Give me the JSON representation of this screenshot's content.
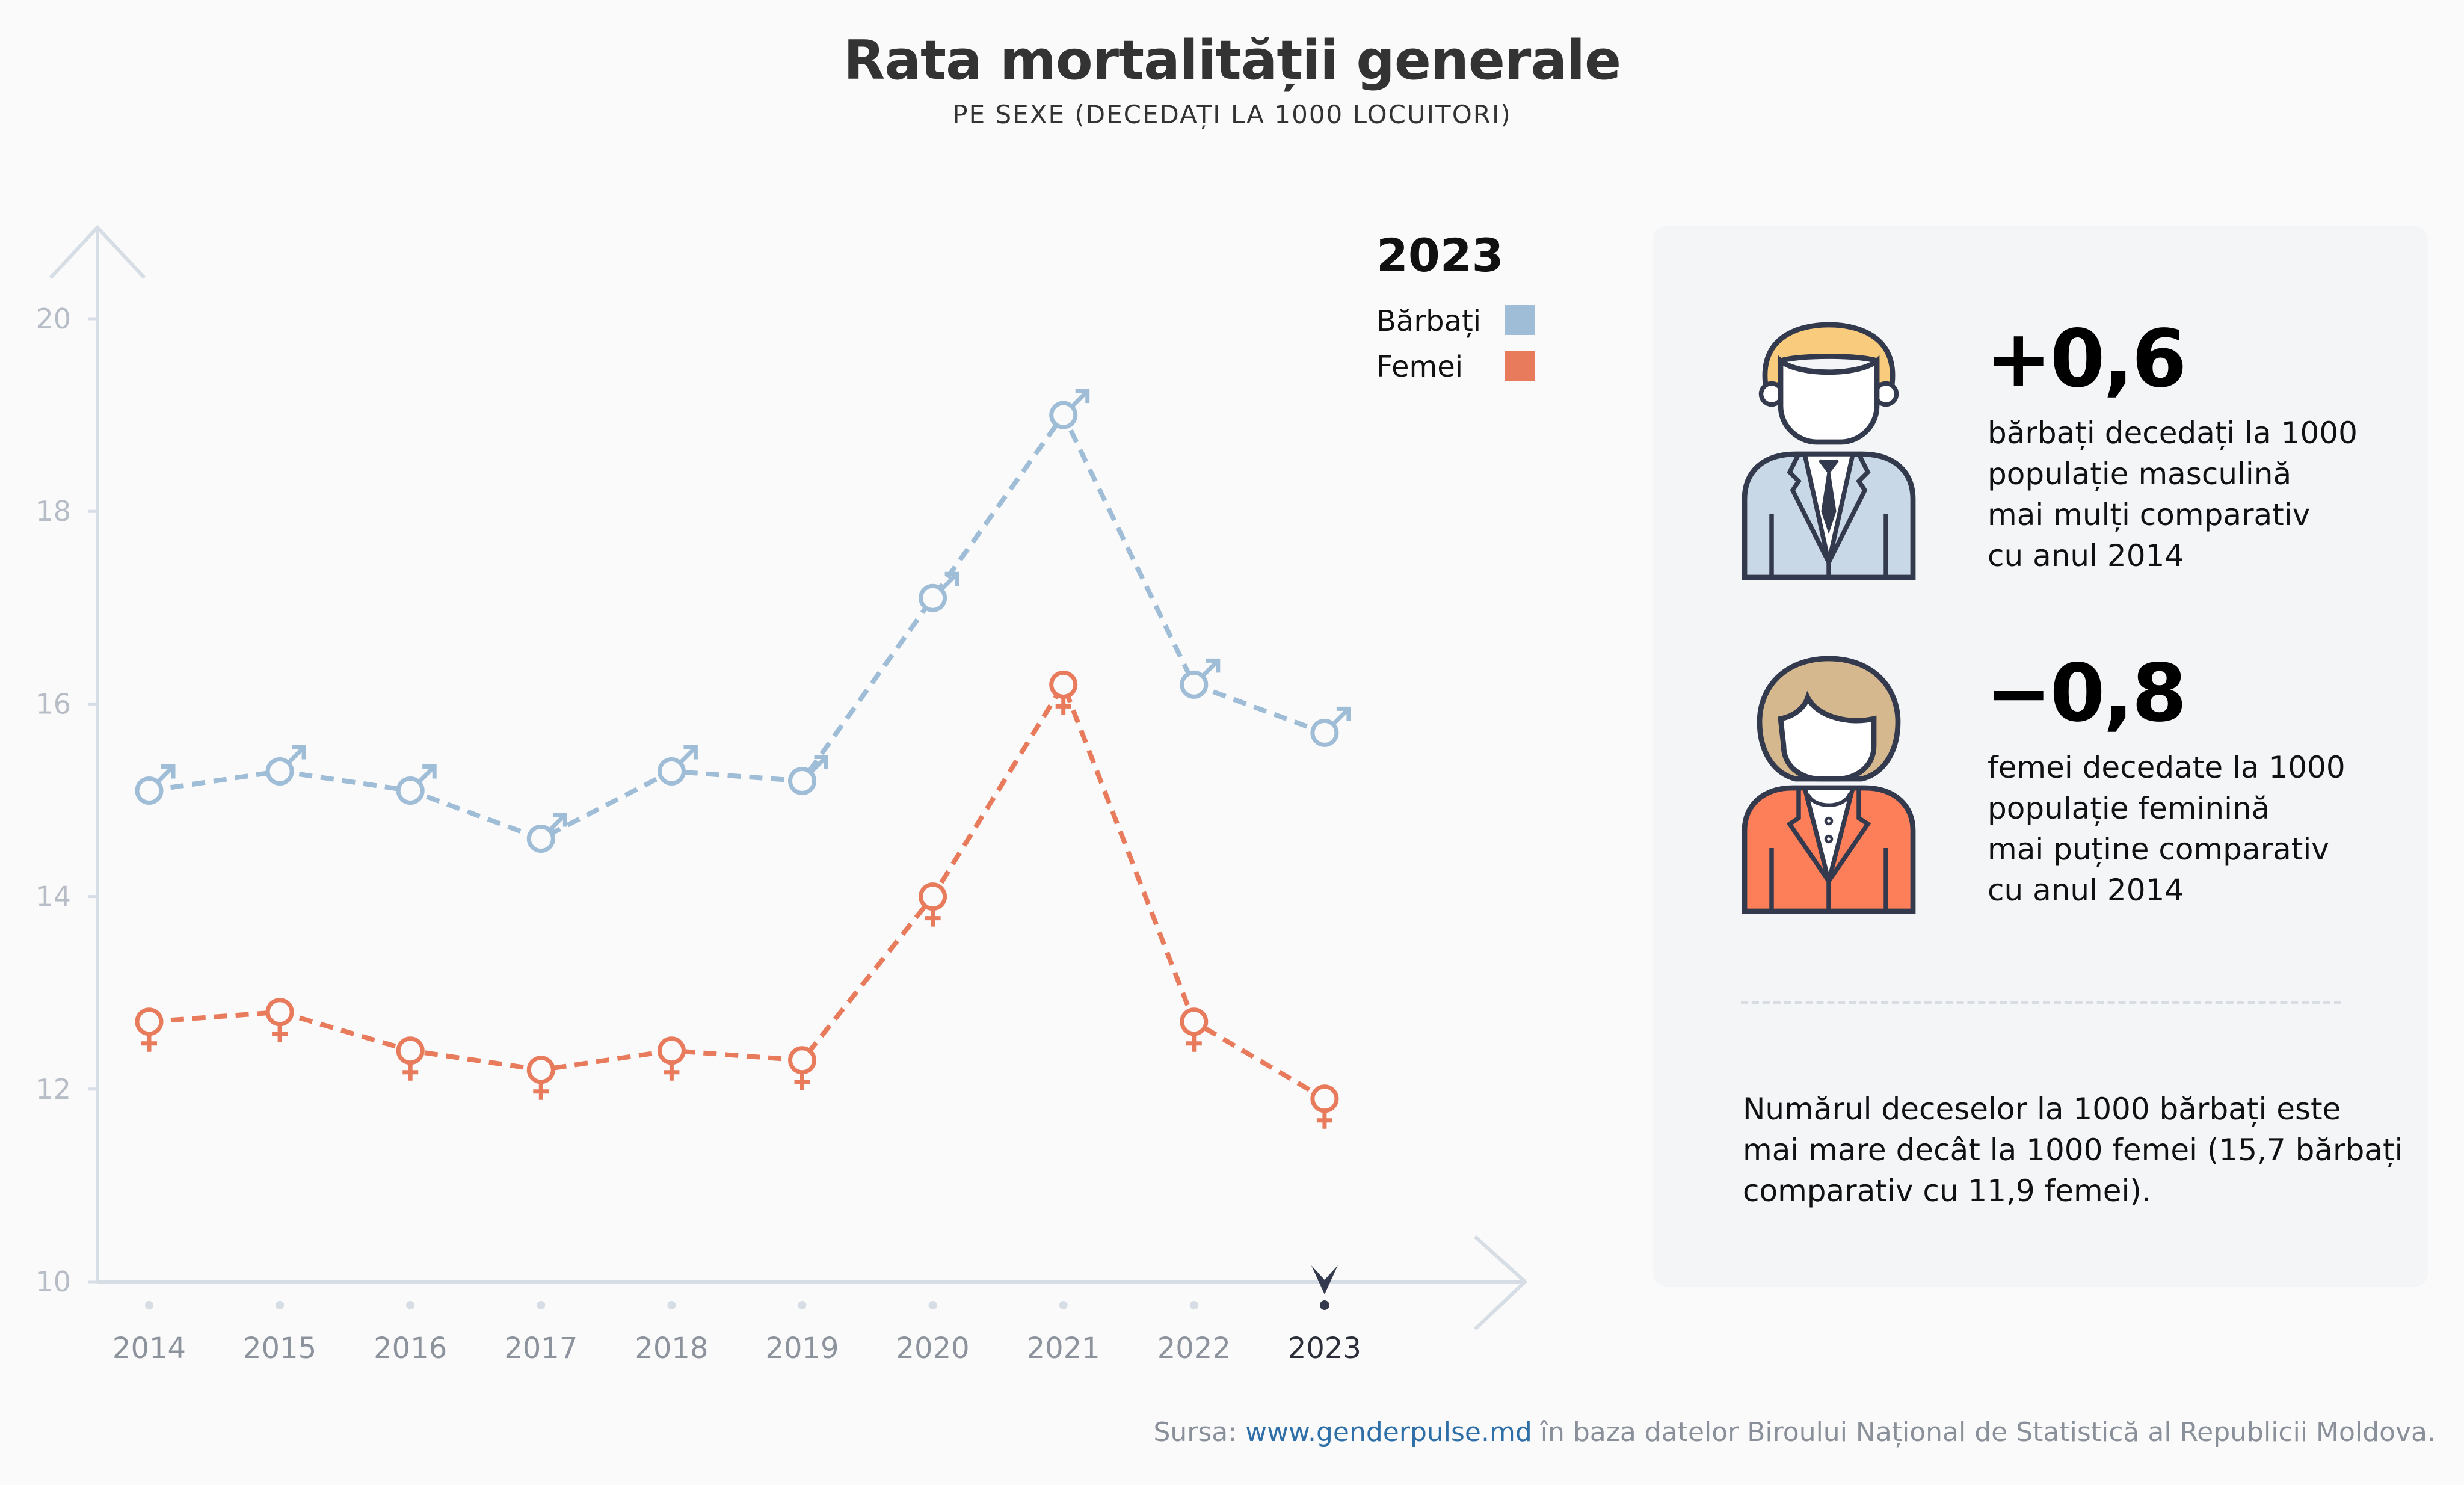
{
  "header": {
    "title": "Rata mortalității generale",
    "subtitle": "PE SEXE (DECEDAȚI LA 1000 LOCUITORI)"
  },
  "chart_data": {
    "type": "line",
    "title": "Rata mortalității generale",
    "subtitle": "PE SEXE (DECEDAȚI LA 1000 LOCUITORI)",
    "categories": [
      "2014",
      "2015",
      "2016",
      "2017",
      "2018",
      "2019",
      "2020",
      "2021",
      "2022",
      "2023"
    ],
    "highlighted_category": "2023",
    "y_ticks": [
      "10",
      "12",
      "14",
      "16",
      "18",
      "20"
    ],
    "ylim": [
      10,
      20
    ],
    "grid": false,
    "legend_position": "top-right",
    "legend_title": "2023",
    "series": [
      {
        "name": "Bărbați",
        "color": "#9fbdd6",
        "marker": "male-symbol",
        "values": [
          15.1,
          15.3,
          15.1,
          14.6,
          15.3,
          15.2,
          17.1,
          19.0,
          16.2,
          15.7
        ]
      },
      {
        "name": "Femei",
        "color": "#e97b5d",
        "marker": "female-symbol",
        "values": [
          12.7,
          12.8,
          12.4,
          12.2,
          12.4,
          12.3,
          14.0,
          16.2,
          12.7,
          11.9
        ]
      }
    ]
  },
  "panel": {
    "men": {
      "value": "+0,6",
      "lines": [
        "bărbați decedați la 1000",
        "populație masculină",
        "mai mulți comparativ",
        "cu anul 2014"
      ],
      "icon": "man-avatar-icon"
    },
    "women": {
      "value": "−0,8",
      "lines": [
        "femei decedate la 1000",
        "populație feminină",
        "mai puține comparativ",
        "cu anul 2014"
      ],
      "icon": "woman-avatar-icon"
    },
    "note_lines": [
      "Numărul deceselor la 1000 bărbați este",
      "mai mare decât la 1000 femei (15,7 bărbați",
      "comparativ cu 11,9 femei)."
    ]
  },
  "footer": {
    "prefix": "Sursa: ",
    "link": "www.genderpulse.md",
    "suffix": " în baza datelor Biroului Național de Statistică al Republicii Moldova."
  }
}
